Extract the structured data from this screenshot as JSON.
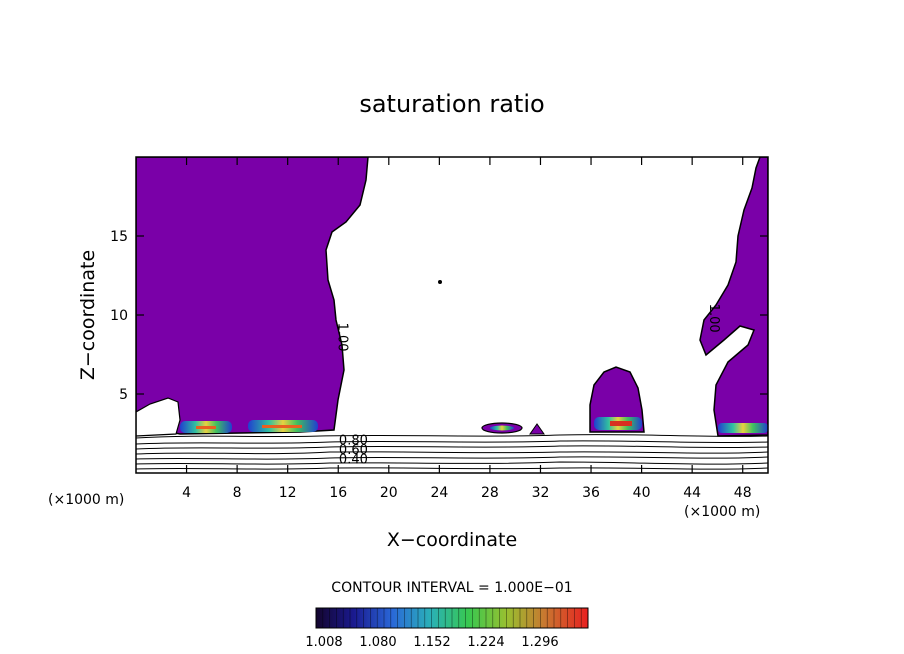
{
  "chart_data": {
    "type": "contour",
    "title": "saturation ratio",
    "xlabel": "X−coordinate",
    "ylabel": "Z−coordinate",
    "x_unit_left": "(×1000 m)",
    "x_unit_right": "(×1000 m)",
    "xlim": [
      0,
      50
    ],
    "ylim": [
      0,
      20
    ],
    "x_ticks": [
      4,
      8,
      12,
      16,
      20,
      24,
      28,
      32,
      36,
      40,
      44,
      48
    ],
    "y_ticks": [
      5,
      10,
      15
    ],
    "contour_interval_text": "CONTOUR INTERVAL = 1.000E−01",
    "contour_labels": [
      {
        "text": "1.00",
        "x": 16.0,
        "z": 8.6
      },
      {
        "text": "1.00",
        "x": 45.4,
        "z": 9.8
      },
      {
        "text": "0.80",
        "x": 17.2,
        "z": 1.8
      },
      {
        "text": "0.60",
        "x": 17.2,
        "z": 1.2
      },
      {
        "text": "0.40",
        "x": 17.2,
        "z": 0.6
      }
    ],
    "colorbar": {
      "tick_labels": [
        "1.008",
        "1.080",
        "1.152",
        "1.224",
        "1.296"
      ],
      "colors": [
        "#1a0a3a",
        "#1a2aa0",
        "#2a70d8",
        "#2ab8b0",
        "#3ad050",
        "#8ac830",
        "#c89030",
        "#d85030",
        "#e82828"
      ]
    },
    "supersaturated_regions": [
      {
        "label": "left tall region",
        "x_range": [
          0,
          18.5
        ],
        "z_range": [
          2.5,
          20
        ]
      },
      {
        "label": "central cloud",
        "x_range": [
          36,
          40
        ],
        "z_range": [
          2.6,
          6.6
        ]
      },
      {
        "label": "small cloud",
        "x_range": [
          27.5,
          31
        ],
        "z_range": [
          2.6,
          3.2
        ]
      },
      {
        "label": "right region",
        "x_range": [
          43.5,
          50
        ],
        "z_range": [
          2.5,
          20
        ]
      }
    ]
  }
}
